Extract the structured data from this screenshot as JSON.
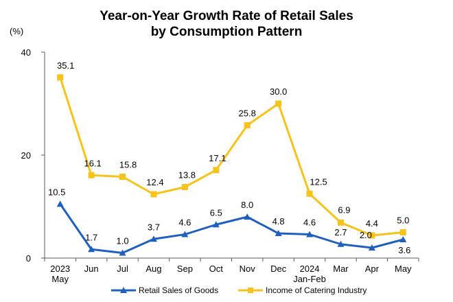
{
  "chart_data": {
    "type": "line",
    "title_line1": "Year-on-Year Growth Rate of Retail Sales",
    "title_line2": "by Consumption Pattern",
    "unit": "(%)",
    "categories": [
      [
        "2023",
        "May"
      ],
      [
        "Jun"
      ],
      [
        "Jul"
      ],
      [
        "Aug"
      ],
      [
        "Sep"
      ],
      [
        "Oct"
      ],
      [
        "Nov"
      ],
      [
        "Dec"
      ],
      [
        "2024",
        "Jan-Feb"
      ],
      [
        "Mar"
      ],
      [
        "Apr"
      ],
      [
        "May"
      ]
    ],
    "ylim": [
      0,
      40
    ],
    "yticks": [
      0,
      20,
      40
    ],
    "grid": false,
    "legend_position": "bottom",
    "series": [
      {
        "name": "Retail Sales of Goods",
        "color": "#1f5fbf",
        "marker": "triangle",
        "values": [
          10.5,
          1.7,
          1.0,
          3.7,
          4.6,
          6.5,
          8.0,
          4.8,
          4.6,
          2.7,
          2.0,
          3.6
        ],
        "labels": [
          "10.5",
          "1.7",
          "1.0",
          "3.7",
          "4.6",
          "6.5",
          "8.0",
          "4.8",
          "4.6",
          "2.7",
          "2.0",
          "3.6"
        ]
      },
      {
        "name": "Income of Catering Industry",
        "color": "#f7c31b",
        "marker": "square",
        "values": [
          35.1,
          16.1,
          15.8,
          12.4,
          13.8,
          17.1,
          25.8,
          30.0,
          12.5,
          6.9,
          4.4,
          5.0
        ],
        "labels": [
          "35.1",
          "16.1",
          "15.8",
          "12.4",
          "13.8",
          "17.1",
          "25.8",
          "30.0",
          "12.5",
          "6.9",
          "4.4",
          "5.0"
        ]
      }
    ]
  }
}
